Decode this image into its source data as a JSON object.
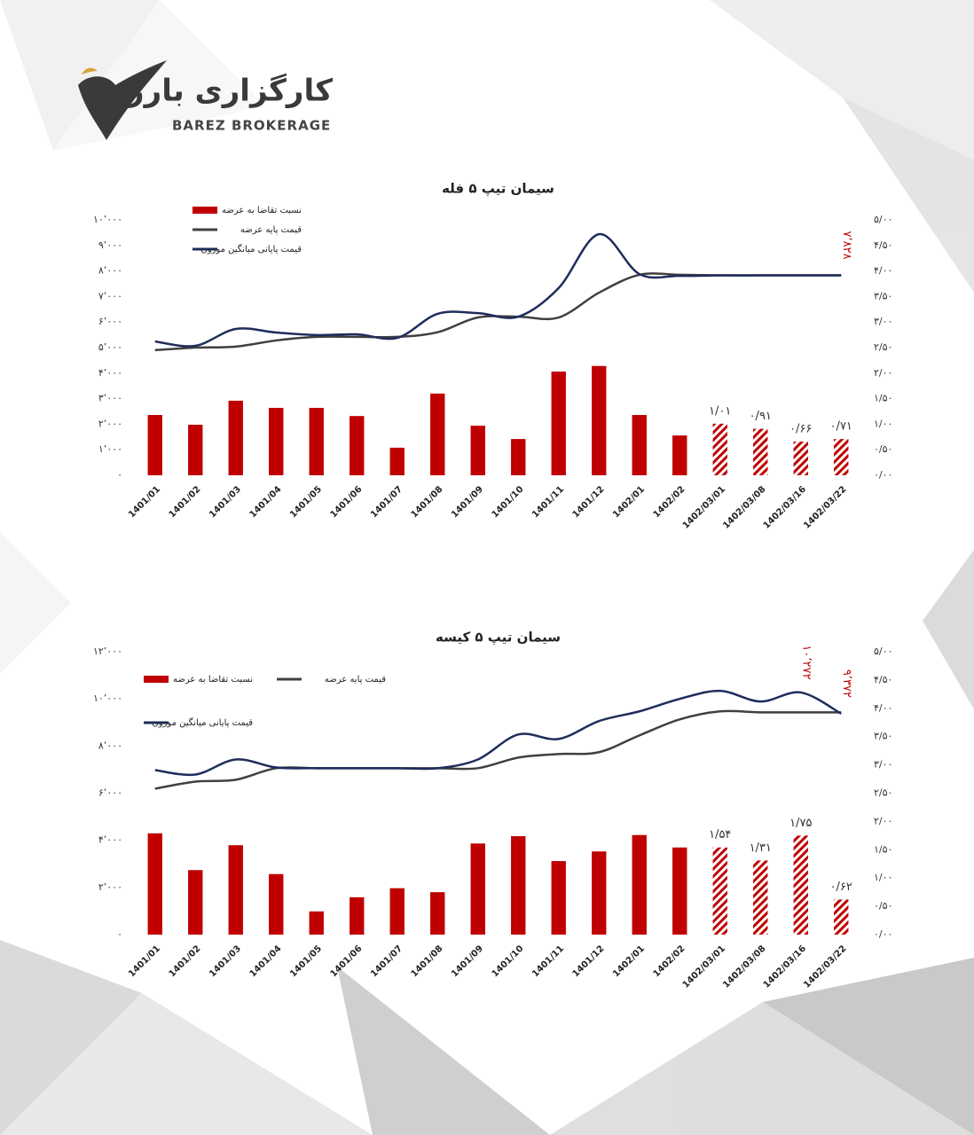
{
  "header": {
    "logo_fa": "کارگزاری بارز",
    "logo_en": "BAREZ BROKERAGE"
  },
  "chart_data": [
    {
      "type": "combo",
      "title": "سیمان تیپ ۵ فله",
      "categories": [
        "1401/01",
        "1401/02",
        "1401/03",
        "1401/04",
        "1401/05",
        "1401/06",
        "1401/07",
        "1401/08",
        "1401/09",
        "1401/10",
        "1401/11",
        "1401/12",
        "1402/01",
        "1402/02",
        "1402/03/01",
        "1402/03/08",
        "1402/03/16",
        "1402/03/22"
      ],
      "series": [
        {
          "name": "نسبت تقاضا به عرضه",
          "kind": "bar",
          "axis": "y2",
          "color": "#c00000",
          "values": [
            1.18,
            0.99,
            1.46,
            1.32,
            1.32,
            1.16,
            0.54,
            1.6,
            0.97,
            0.71,
            2.03,
            2.14,
            1.18,
            0.78,
            1.01,
            0.91,
            0.66,
            0.71
          ],
          "value_labels": [
            null,
            null,
            null,
            null,
            null,
            null,
            null,
            null,
            null,
            null,
            null,
            null,
            null,
            null,
            "۱/۰۱",
            "۰/۹۱",
            "۰/۶۶",
            "۰/۷۱"
          ],
          "patterns": [
            "solid",
            "solid",
            "solid",
            "solid",
            "solid",
            "solid",
            "solid",
            "solid",
            "solid",
            "solid",
            "solid",
            "solid",
            "solid",
            "solid",
            "hatched",
            "hatched",
            "hatched",
            "hatched"
          ]
        },
        {
          "name": "قیمت پایه عرضه",
          "kind": "line",
          "axis": "y",
          "color": "#404040",
          "values": [
            4900,
            5000,
            5040,
            5280,
            5420,
            5420,
            5420,
            5600,
            6180,
            6210,
            6180,
            7150,
            7850,
            7850,
            7828,
            7828,
            7828,
            7828
          ]
        },
        {
          "name": "قیمت پایانی میانگین موزون",
          "kind": "line",
          "axis": "y",
          "color": "#1f2d5c",
          "values": [
            5240,
            5070,
            5730,
            5590,
            5490,
            5520,
            5380,
            6320,
            6350,
            6210,
            7330,
            9440,
            7880,
            7810,
            7828,
            7828,
            7828,
            7828
          ],
          "value_labels": [
            null,
            null,
            null,
            null,
            null,
            null,
            null,
            null,
            null,
            null,
            null,
            null,
            null,
            null,
            null,
            null,
            null,
            "۷٬۸۲۸"
          ]
        }
      ],
      "ylim": [
        0,
        10000
      ],
      "yticks": [
        {
          "value": 0,
          "label": "۰"
        },
        {
          "value": 1000,
          "label": "۱٬۰۰۰"
        },
        {
          "value": 2000,
          "label": "۲٬۰۰۰"
        },
        {
          "value": 3000,
          "label": "۳٬۰۰۰"
        },
        {
          "value": 4000,
          "label": "۴٬۰۰۰"
        },
        {
          "value": 5000,
          "label": "۵٬۰۰۰"
        },
        {
          "value": 6000,
          "label": "۶٬۰۰۰"
        },
        {
          "value": 7000,
          "label": "۷٬۰۰۰"
        },
        {
          "value": 8000,
          "label": "۸٬۰۰۰"
        },
        {
          "value": 9000,
          "label": "۹٬۰۰۰"
        },
        {
          "value": 10000,
          "label": "۱۰٬۰۰۰"
        }
      ],
      "y2lim": [
        0,
        5
      ],
      "y2ticks": [
        {
          "value": 0,
          "label": "۰/۰۰"
        },
        {
          "value": 0.5,
          "label": "۰/۵۰"
        },
        {
          "value": 1,
          "label": "۱/۰۰"
        },
        {
          "value": 1.5,
          "label": "۱/۵۰"
        },
        {
          "value": 2,
          "label": "۲/۰۰"
        },
        {
          "value": 2.5,
          "label": "۲/۵۰"
        },
        {
          "value": 3,
          "label": "۳/۰۰"
        },
        {
          "value": 3.5,
          "label": "۳/۵۰"
        },
        {
          "value": 4,
          "label": "۴/۰۰"
        },
        {
          "value": 4.5,
          "label": "۴/۵۰"
        },
        {
          "value": 5,
          "label": "۵/۰۰"
        }
      ],
      "legend": "top-left"
    },
    {
      "type": "combo",
      "title": "سیمان تیپ ۵ کیسه",
      "categories": [
        "1401/01",
        "1401/02",
        "1401/03",
        "1401/04",
        "1401/05",
        "1401/06",
        "1401/07",
        "1401/08",
        "1401/09",
        "1401/10",
        "1401/11",
        "1401/12",
        "1402/01",
        "1402/02",
        "1402/03/01",
        "1402/03/08",
        "1402/03/16",
        "1402/03/22"
      ],
      "series": [
        {
          "name": "نسبت تقاضا به عرضه",
          "kind": "bar",
          "axis": "y2",
          "color": "#c00000",
          "values": [
            1.79,
            1.14,
            1.58,
            1.07,
            0.41,
            0.66,
            0.82,
            0.75,
            1.61,
            1.74,
            1.3,
            1.47,
            1.76,
            1.54,
            1.54,
            1.31,
            1.75,
            0.62
          ],
          "value_labels": [
            null,
            null,
            null,
            null,
            null,
            null,
            null,
            null,
            null,
            null,
            null,
            null,
            null,
            null,
            "۱/۵۴",
            "۱/۳۱",
            "۱/۷۵",
            "۰/۶۲"
          ],
          "patterns": [
            "solid",
            "solid",
            "solid",
            "solid",
            "solid",
            "solid",
            "solid",
            "solid",
            "solid",
            "solid",
            "solid",
            "solid",
            "solid",
            "solid",
            "hatched",
            "hatched",
            "hatched",
            "hatched"
          ]
        },
        {
          "name": "قیمت پایه عرضه",
          "kind": "line",
          "axis": "y",
          "color": "#404040",
          "values": [
            6190,
            6490,
            6570,
            7060,
            7060,
            7060,
            7060,
            7060,
            7060,
            7510,
            7660,
            7740,
            8450,
            9130,
            9470,
            9430,
            9430,
            9430
          ]
        },
        {
          "name": "قیمت پایانی میانگین موزون",
          "kind": "line",
          "axis": "y",
          "color": "#1f2d5c",
          "values": [
            6980,
            6790,
            7430,
            7090,
            7060,
            7060,
            7060,
            7060,
            7430,
            8490,
            8300,
            9060,
            9470,
            10000,
            10340,
            9890,
            10272,
            9372
          ],
          "value_labels": [
            null,
            null,
            null,
            null,
            null,
            null,
            null,
            null,
            null,
            null,
            null,
            null,
            null,
            null,
            null,
            null,
            "۱۰٬۲۷۲",
            "۹٬۳۷۲"
          ]
        }
      ],
      "ylim": [
        0,
        12000
      ],
      "yticks": [
        {
          "value": 0,
          "label": "۰"
        },
        {
          "value": 2000,
          "label": "۲٬۰۰۰"
        },
        {
          "value": 4000,
          "label": "۴٬۰۰۰"
        },
        {
          "value": 6000,
          "label": "۶٬۰۰۰"
        },
        {
          "value": 8000,
          "label": "۸٬۰۰۰"
        },
        {
          "value": 10000,
          "label": "۱۰٬۰۰۰"
        },
        {
          "value": 12000,
          "label": "۱۲٬۰۰۰"
        }
      ],
      "y2lim": [
        0,
        5
      ],
      "y2ticks": [
        {
          "value": 0,
          "label": "۰/۰۰"
        },
        {
          "value": 0.5,
          "label": "۰/۵۰"
        },
        {
          "value": 1,
          "label": "۱/۰۰"
        },
        {
          "value": 1.5,
          "label": "۱/۵۰"
        },
        {
          "value": 2,
          "label": "۲/۰۰"
        },
        {
          "value": 2.5,
          "label": "۲/۵۰"
        },
        {
          "value": 3,
          "label": "۳/۰۰"
        },
        {
          "value": 3.5,
          "label": "۳/۵۰"
        },
        {
          "value": 4,
          "label": "۴/۰۰"
        },
        {
          "value": 4.5,
          "label": "۴/۵۰"
        },
        {
          "value": 5,
          "label": "۵/۰۰"
        }
      ],
      "legend": "top-left"
    }
  ]
}
